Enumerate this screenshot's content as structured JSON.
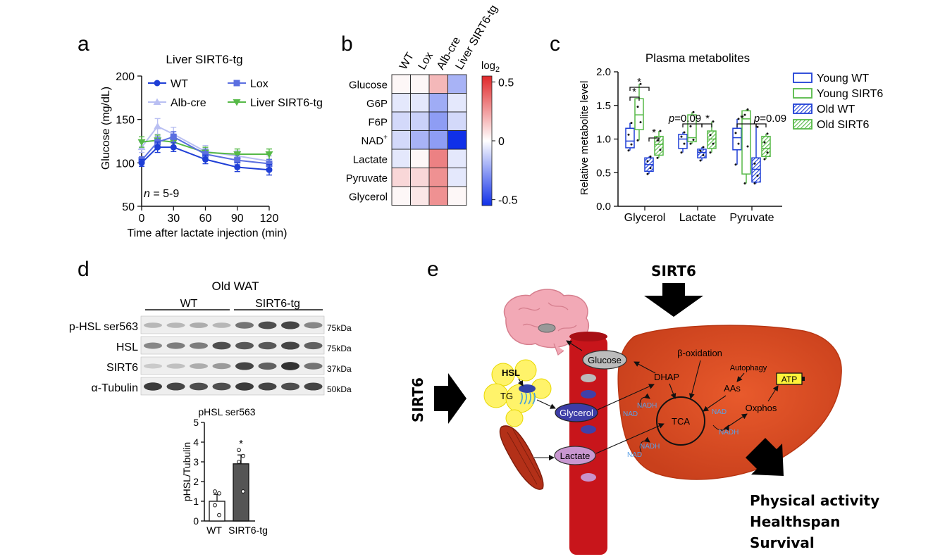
{
  "panels": {
    "a": "a",
    "b": "b",
    "c": "c",
    "d": "d",
    "e": "e"
  },
  "colors": {
    "wt": "#1f3fd6",
    "lox": "#5b6fe0",
    "albcre": "#b9bff2",
    "sirt6": "#56b947",
    "liver": "#d8401f",
    "vessel": "#c8151b"
  },
  "chart_data": [
    {
      "id": "a",
      "type": "line",
      "title": "Liver SIRT6-tg",
      "xlabel": "Time after lactate injection (min)",
      "ylabel": "Glucose (mg/dL)",
      "annotation_n": "n",
      "annotation_rest": " = 5-9",
      "x": [
        0,
        15,
        30,
        60,
        90,
        120
      ],
      "xticks": [
        "0",
        "30",
        "60",
        "90",
        "120"
      ],
      "xtick_values": [
        0,
        30,
        60,
        90,
        120
      ],
      "yticks": [
        "50",
        "100",
        "150",
        "200"
      ],
      "ytick_values": [
        50,
        100,
        150,
        200
      ],
      "xlim": [
        0,
        120
      ],
      "ylim": [
        50,
        200
      ],
      "series": [
        {
          "name": "WT",
          "values": [
            100,
            118,
            118,
            104,
            95,
            92
          ],
          "err": [
            4,
            6,
            5,
            5,
            5,
            6
          ],
          "color": "#1f3fd6",
          "marker": "circle"
        },
        {
          "name": "Lox",
          "values": [
            103,
            124,
            130,
            110,
            103,
            99
          ],
          "err": [
            4,
            6,
            6,
            6,
            5,
            5
          ],
          "color": "#5b6fe0",
          "marker": "square"
        },
        {
          "name": "Alb-cre",
          "values": [
            118,
            142,
            133,
            113,
            108,
            102
          ],
          "err": [
            6,
            9,
            8,
            7,
            6,
            6
          ],
          "color": "#b9bff2",
          "marker": "triangle-up"
        },
        {
          "name": "Liver SIRT6-tg",
          "values": [
            124,
            126,
            124,
            112,
            110,
            110
          ],
          "err": [
            6,
            6,
            6,
            6,
            6,
            6
          ],
          "color": "#56b947",
          "marker": "triangle-down"
        }
      ]
    },
    {
      "id": "b",
      "type": "heatmap",
      "columns": [
        "WT",
        "Lox",
        "Alb-cre",
        "Liver SIRT6-tg"
      ],
      "rows": [
        "Glucose",
        "G6P",
        "F6P",
        "NAD",
        "Lactate",
        "Pyruvate",
        "Glycerol"
      ],
      "nad_superscript": "+",
      "values": [
        [
          0.02,
          0.02,
          0.18,
          -0.2
        ],
        [
          -0.06,
          -0.06,
          -0.22,
          -0.06
        ],
        [
          -0.1,
          -0.12,
          -0.26,
          -0.1
        ],
        [
          -0.1,
          -0.2,
          -0.26,
          -0.58
        ],
        [
          -0.06,
          0.02,
          0.32,
          -0.06
        ],
        [
          0.1,
          0.1,
          0.28,
          -0.06
        ],
        [
          0.02,
          0.06,
          0.28,
          0.02
        ]
      ],
      "colorbar_title": "log",
      "colorbar_subscript": "2",
      "colorbar_ticks": [
        "0.5",
        "0",
        "-0.5"
      ],
      "colorbar_tick_values": [
        0.5,
        0,
        -0.5
      ],
      "zlim": [
        -0.55,
        0.55
      ]
    },
    {
      "id": "c",
      "type": "box",
      "title": "Plasma metabolites",
      "ylabel": "Relative metabolite level",
      "categories": [
        "Glycerol",
        "Lactate",
        "Pyruvate"
      ],
      "yticks": [
        "0.0",
        "0.5",
        "1.0",
        "1.5",
        "2.0"
      ],
      "ytick_values": [
        0,
        0.5,
        1,
        1.5,
        2
      ],
      "ylim": [
        0,
        2
      ],
      "legend": [
        "Young WT",
        "Young SIRT6",
        "Old WT",
        "Old SIRT6"
      ],
      "series": [
        {
          "name": "Young WT",
          "style": "open-blue",
          "boxes": [
            {
              "min": 0.83,
              "q1": 0.87,
              "med": 0.97,
              "q3": 1.16,
              "max": 1.24
            },
            {
              "min": 0.8,
              "q1": 0.86,
              "med": 1.0,
              "q3": 1.07,
              "max": 1.1
            },
            {
              "min": 0.62,
              "q1": 0.84,
              "med": 1.02,
              "q3": 1.16,
              "max": 1.3
            }
          ]
        },
        {
          "name": "Young SIRT6",
          "style": "open-green",
          "boxes": [
            {
              "min": 0.98,
              "q1": 1.14,
              "med": 1.36,
              "q3": 1.6,
              "max": 1.82
            },
            {
              "min": 0.93,
              "q1": 0.96,
              "med": 1.02,
              "q3": 1.36,
              "max": 1.4
            },
            {
              "min": 0.34,
              "q1": 0.48,
              "med": 1.3,
              "q3": 1.42,
              "max": 1.44
            }
          ]
        },
        {
          "name": "Old WT",
          "style": "hatch-blue",
          "boxes": [
            {
              "min": 0.48,
              "q1": 0.52,
              "med": 0.62,
              "q3": 0.72,
              "max": 0.74
            },
            {
              "min": 0.68,
              "q1": 0.72,
              "med": 0.8,
              "q3": 0.85,
              "max": 0.88
            },
            {
              "min": 0.34,
              "q1": 0.36,
              "med": 0.55,
              "q3": 0.72,
              "max": 1.18
            }
          ]
        },
        {
          "name": "Old SIRT6",
          "style": "hatch-green",
          "boxes": [
            {
              "min": 0.72,
              "q1": 0.76,
              "med": 0.92,
              "q3": 1.04,
              "max": 1.12
            },
            {
              "min": 0.8,
              "q1": 0.86,
              "med": 1.0,
              "q3": 1.12,
              "max": 1.26
            },
            {
              "min": 0.7,
              "q1": 0.74,
              "med": 0.86,
              "q3": 1.04,
              "max": 1.08
            }
          ]
        }
      ],
      "annotations": [
        "*",
        "*",
        "*",
        "p=0.09",
        "*",
        "*",
        "p=0.09"
      ]
    },
    {
      "id": "d-bar",
      "type": "bar",
      "title": "pHSL ser563",
      "ylabel": "pHSL/Tubulin",
      "categories": [
        "WT",
        "SIRT6-tg"
      ],
      "values": [
        1.0,
        2.9
      ],
      "err": [
        0.35,
        0.45
      ],
      "points": [
        [
          1.5,
          1.4,
          0.8,
          0.3
        ],
        [
          3.6,
          3.3,
          3.0,
          1.5
        ]
      ],
      "yticks": [
        "0",
        "1",
        "2",
        "3",
        "4",
        "5"
      ],
      "ytick_values": [
        0,
        1,
        2,
        3,
        4,
        5
      ],
      "ylim": [
        0,
        5
      ],
      "significance": "*"
    }
  ],
  "blot": {
    "title": "Old WAT",
    "groups": [
      "WT",
      "SIRT6-tg"
    ],
    "rows": [
      {
        "label": "p-HSL ser563",
        "kda": "75kDa"
      },
      {
        "label": "HSL",
        "kda": "75kDa"
      },
      {
        "label": "SIRT6",
        "kda": "37kDa"
      },
      {
        "label": "α-Tubulin",
        "kda": "50kDa"
      }
    ]
  },
  "diagram": {
    "sirt6_top": "SIRT6",
    "sirt6_left": "SIRT6",
    "glucose": "Glucose",
    "glycerol": "Glycerol",
    "lactate": "Lactate",
    "hsl": "HSL",
    "tg": "TG",
    "dhap": "DHAP",
    "beta_ox": "β-oxidation",
    "autophagy": "Autophagy",
    "aas": "AAs",
    "atp": "ATP",
    "tca": "TCA",
    "oxphos": "Oxphos",
    "nadh": "NADH",
    "nad": "NAD",
    "outcome1": "Physical activity",
    "outcome2": "Healthspan",
    "outcome3": "Survival"
  }
}
